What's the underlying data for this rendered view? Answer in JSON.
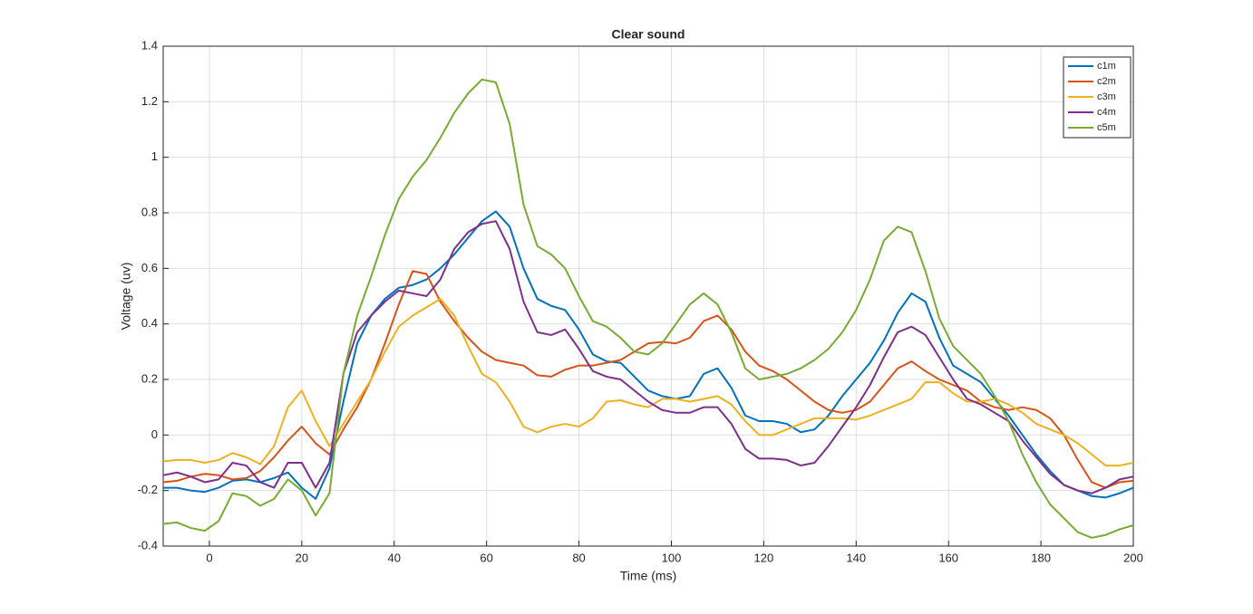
{
  "chart_data": {
    "type": "line",
    "title": "Clear sound",
    "x_label": "Time (ms)",
    "y_label": "Voltage (uv)",
    "x": [
      -10,
      -7,
      -4,
      -1,
      2,
      5,
      8,
      11,
      14,
      17,
      20,
      23,
      26,
      29,
      32,
      35,
      38,
      41,
      44,
      47,
      50,
      53,
      56,
      59,
      62,
      65,
      68,
      71,
      74,
      77,
      80,
      83,
      86,
      89,
      92,
      95,
      98,
      101,
      104,
      107,
      110,
      113,
      116,
      119,
      122,
      125,
      128,
      131,
      134,
      137,
      140,
      143,
      146,
      149,
      152,
      155,
      158,
      161,
      164,
      167,
      170,
      173,
      176,
      179,
      182,
      185,
      188,
      191,
      194,
      197,
      200
    ],
    "series": [
      {
        "name": "c1m",
        "color": "#0072bd",
        "values": [
          -0.19,
          -0.19,
          -0.2,
          -0.205,
          -0.19,
          -0.165,
          -0.16,
          -0.17,
          -0.155,
          -0.135,
          -0.19,
          -0.23,
          -0.12,
          0.12,
          0.33,
          0.43,
          0.49,
          0.53,
          0.54,
          0.56,
          0.6,
          0.65,
          0.71,
          0.77,
          0.805,
          0.75,
          0.6,
          0.49,
          0.465,
          0.45,
          0.38,
          0.29,
          0.265,
          0.26,
          0.21,
          0.16,
          0.14,
          0.13,
          0.14,
          0.22,
          0.24,
          0.17,
          0.07,
          0.05,
          0.05,
          0.04,
          0.01,
          0.02,
          0.07,
          0.14,
          0.2,
          0.26,
          0.34,
          0.44,
          0.51,
          0.48,
          0.35,
          0.25,
          0.22,
          0.19,
          0.13,
          0.07,
          0.0,
          -0.07,
          -0.13,
          -0.18,
          -0.2,
          -0.22,
          -0.225,
          -0.21,
          -0.19
        ]
      },
      {
        "name": "c2m",
        "color": "#d95319",
        "values": [
          -0.17,
          -0.165,
          -0.15,
          -0.14,
          -0.145,
          -0.16,
          -0.155,
          -0.13,
          -0.08,
          -0.02,
          0.03,
          -0.03,
          -0.07,
          0.02,
          0.1,
          0.2,
          0.33,
          0.47,
          0.59,
          0.58,
          0.48,
          0.41,
          0.35,
          0.3,
          0.27,
          0.26,
          0.25,
          0.215,
          0.21,
          0.235,
          0.25,
          0.25,
          0.26,
          0.27,
          0.3,
          0.33,
          0.335,
          0.33,
          0.35,
          0.41,
          0.43,
          0.38,
          0.3,
          0.25,
          0.23,
          0.2,
          0.16,
          0.12,
          0.09,
          0.08,
          0.09,
          0.12,
          0.18,
          0.24,
          0.265,
          0.23,
          0.2,
          0.18,
          0.16,
          0.12,
          0.1,
          0.09,
          0.1,
          0.09,
          0.06,
          0.0,
          -0.09,
          -0.17,
          -0.19,
          -0.17,
          -0.165
        ]
      },
      {
        "name": "c3m",
        "color": "#edb120",
        "values": [
          -0.095,
          -0.09,
          -0.09,
          -0.1,
          -0.09,
          -0.065,
          -0.08,
          -0.105,
          -0.04,
          0.1,
          0.16,
          0.05,
          -0.04,
          0.04,
          0.12,
          0.2,
          0.3,
          0.39,
          0.43,
          0.46,
          0.49,
          0.43,
          0.32,
          0.22,
          0.19,
          0.12,
          0.03,
          0.01,
          0.03,
          0.04,
          0.03,
          0.06,
          0.12,
          0.125,
          0.11,
          0.1,
          0.13,
          0.13,
          0.12,
          0.13,
          0.14,
          0.11,
          0.05,
          0.0,
          0.0,
          0.02,
          0.04,
          0.06,
          0.06,
          0.06,
          0.055,
          0.07,
          0.09,
          0.11,
          0.13,
          0.19,
          0.19,
          0.15,
          0.12,
          0.12,
          0.13,
          0.11,
          0.08,
          0.04,
          0.02,
          0.0,
          -0.03,
          -0.07,
          -0.11,
          -0.11,
          -0.1
        ]
      },
      {
        "name": "c4m",
        "color": "#7e2f8e",
        "values": [
          -0.145,
          -0.135,
          -0.15,
          -0.17,
          -0.16,
          -0.1,
          -0.11,
          -0.17,
          -0.19,
          -0.1,
          -0.1,
          -0.19,
          -0.1,
          0.22,
          0.37,
          0.43,
          0.48,
          0.52,
          0.51,
          0.5,
          0.56,
          0.67,
          0.73,
          0.76,
          0.77,
          0.67,
          0.48,
          0.37,
          0.36,
          0.38,
          0.31,
          0.23,
          0.21,
          0.2,
          0.16,
          0.12,
          0.09,
          0.08,
          0.08,
          0.1,
          0.1,
          0.04,
          -0.05,
          -0.085,
          -0.085,
          -0.09,
          -0.11,
          -0.1,
          -0.04,
          0.03,
          0.1,
          0.18,
          0.28,
          0.37,
          0.39,
          0.36,
          0.28,
          0.2,
          0.13,
          0.11,
          0.08,
          0.05,
          -0.02,
          -0.08,
          -0.14,
          -0.18,
          -0.2,
          -0.21,
          -0.19,
          -0.16,
          -0.15
        ]
      },
      {
        "name": "c5m",
        "color": "#77ac30",
        "values": [
          -0.32,
          -0.315,
          -0.335,
          -0.345,
          -0.31,
          -0.21,
          -0.22,
          -0.255,
          -0.23,
          -0.16,
          -0.2,
          -0.29,
          -0.21,
          0.22,
          0.43,
          0.57,
          0.72,
          0.85,
          0.93,
          0.99,
          1.07,
          1.16,
          1.23,
          1.28,
          1.27,
          1.12,
          0.83,
          0.68,
          0.65,
          0.6,
          0.5,
          0.41,
          0.39,
          0.35,
          0.3,
          0.29,
          0.33,
          0.4,
          0.47,
          0.51,
          0.47,
          0.37,
          0.24,
          0.2,
          0.21,
          0.22,
          0.24,
          0.27,
          0.31,
          0.37,
          0.45,
          0.56,
          0.7,
          0.75,
          0.73,
          0.59,
          0.42,
          0.32,
          0.27,
          0.22,
          0.14,
          0.05,
          -0.07,
          -0.17,
          -0.25,
          -0.3,
          -0.35,
          -0.37,
          -0.36,
          -0.34,
          -0.325
        ]
      }
    ],
    "xlim": [
      -10,
      200
    ],
    "xticks": [
      0,
      20,
      40,
      60,
      80,
      100,
      120,
      140,
      160,
      180,
      200
    ],
    "ylim": [
      -0.4,
      1.4
    ],
    "yticks": [
      -0.4,
      -0.2,
      0,
      0.2,
      0.4,
      0.6,
      0.8,
      1,
      1.2,
      1.4
    ],
    "grid": true,
    "legend": "upper right"
  }
}
